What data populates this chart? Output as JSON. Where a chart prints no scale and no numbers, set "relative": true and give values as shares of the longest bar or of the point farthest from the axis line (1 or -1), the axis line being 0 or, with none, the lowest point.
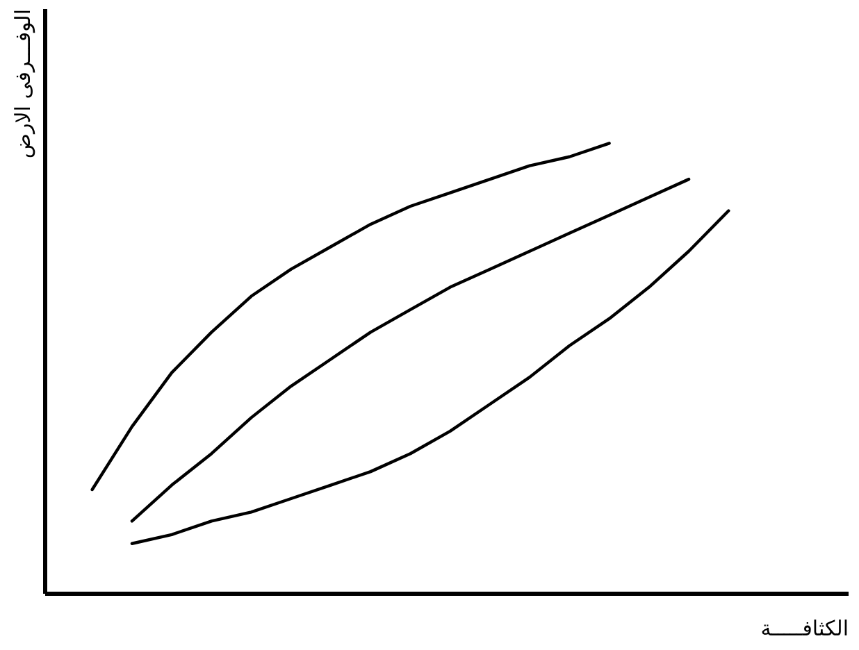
{
  "chart_data": {
    "type": "line",
    "relative": true,
    "xlabel": "الكثافـــــة",
    "ylabel": "الوفـــرفى الارض",
    "categories": [
      null,
      null,
      null,
      null,
      null,
      null,
      null,
      null,
      null,
      null,
      null,
      null,
      null,
      null,
      null,
      null,
      null
    ],
    "tick_labels": false,
    "grid": false,
    "legend": false,
    "marker": "none",
    "line_style": "solid",
    "series": [
      {
        "color": "#000000",
        "values": [
          0.23,
          0.37,
          0.49,
          0.58,
          0.66,
          0.72,
          0.77,
          0.82,
          0.86,
          0.89,
          0.92,
          0.95,
          0.97,
          1,
          null,
          null,
          null
        ]
      },
      {
        "color": "#000000",
        "values": [
          null,
          0.16,
          0.24,
          0.31,
          0.39,
          0.46,
          0.52,
          0.58,
          0.63,
          0.68,
          0.72,
          0.76,
          0.8,
          0.84,
          0.88,
          0.92,
          null
        ]
      },
      {
        "color": "#000000",
        "values": [
          null,
          0.11,
          0.13,
          0.16,
          0.18,
          0.21,
          0.24,
          0.27,
          0.31,
          0.36,
          0.42,
          0.48,
          0.55,
          0.61,
          0.68,
          0.76,
          0.85
        ]
      }
    ]
  }
}
